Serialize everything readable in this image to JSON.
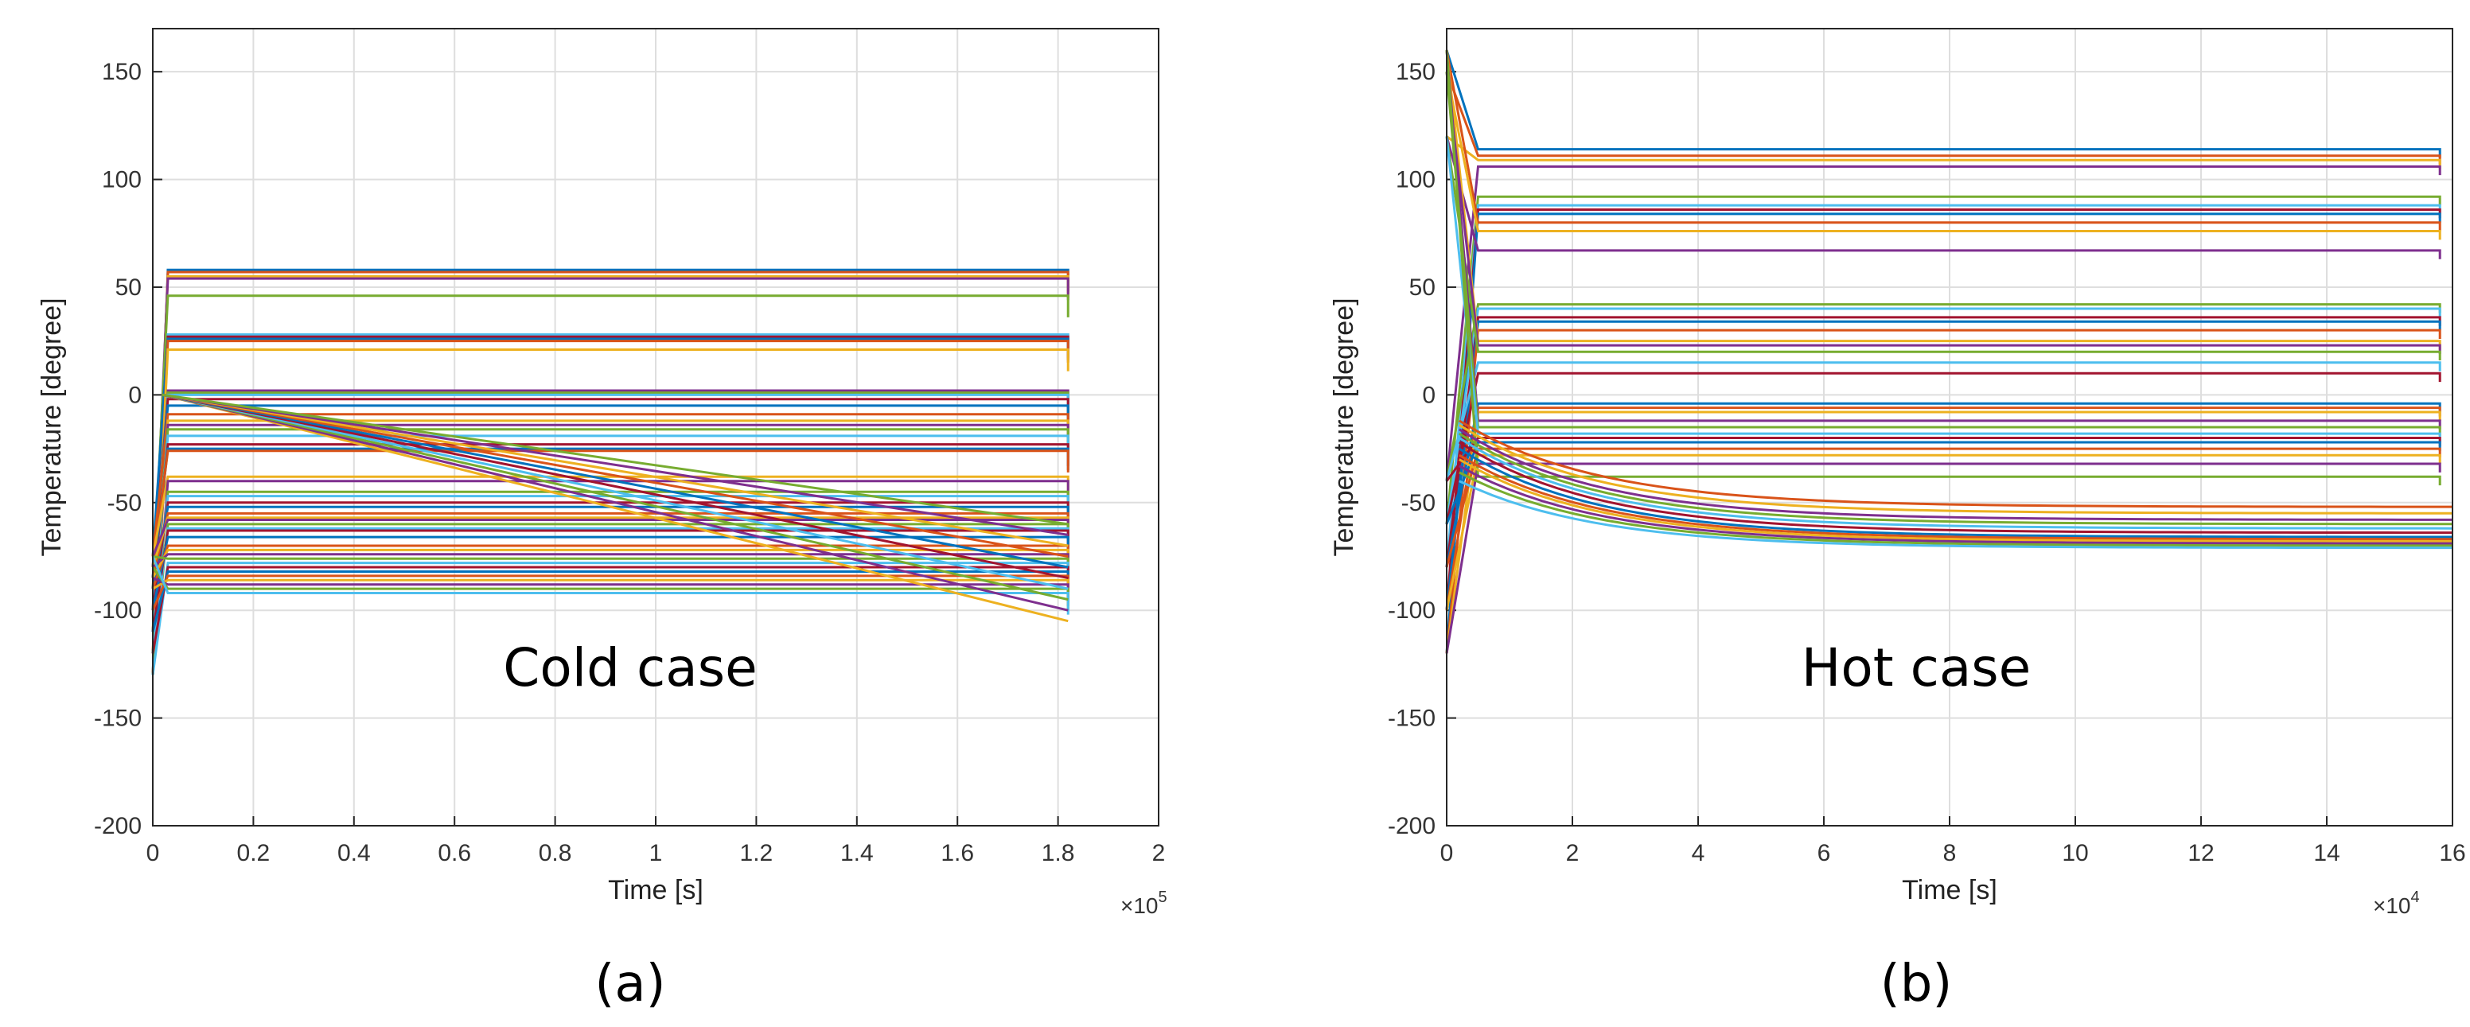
{
  "chart_data": [
    {
      "id": "a",
      "type": "line",
      "caption": "(a)",
      "annotation": "Cold case",
      "xlabel": "Time [s]",
      "ylabel": "Temperature [degree]",
      "x_multiplier": "×10",
      "x_multiplier_exp": "5",
      "xlim": [
        0,
        2
      ],
      "ylim": [
        -200,
        170
      ],
      "x_end": 1.82,
      "xticks": [
        "0",
        "0.2",
        "0.4",
        "0.6",
        "0.8",
        "1",
        "1.2",
        "1.4",
        "1.6",
        "1.8",
        "2"
      ],
      "yticks": [
        "150",
        "100",
        "50",
        "0",
        "-50",
        "-100",
        "-150",
        "-200"
      ],
      "grid": true,
      "series_summary": {
        "flat_levels_degree": [
          58,
          57,
          55,
          54,
          46,
          28,
          27,
          26,
          25,
          21,
          2,
          1,
          0,
          -2,
          -5,
          -9,
          -12,
          -14,
          -16,
          -19,
          -23,
          -25,
          -26,
          -38,
          -40,
          -45,
          -47,
          -50,
          -52,
          -55,
          -57,
          -58,
          -60,
          -62,
          -63,
          -66,
          -70,
          -72,
          -74,
          -76,
          -78,
          -80,
          -82,
          -84,
          -86,
          -88,
          -90,
          -92
        ],
        "start_values_degree": [
          -130,
          -120,
          -110,
          -100,
          -90,
          -85,
          -80,
          -75
        ],
        "ramp_series": [
          {
            "start": 0,
            "end": -105
          },
          {
            "start": 0,
            "end": -100
          },
          {
            "start": 0,
            "end": -95
          },
          {
            "start": 0,
            "end": -90
          },
          {
            "start": 0,
            "end": -85
          },
          {
            "start": 0,
            "end": -80
          },
          {
            "start": 0,
            "end": -75
          },
          {
            "start": 0,
            "end": -70
          },
          {
            "start": 0,
            "end": -65
          },
          {
            "start": 0,
            "end": -60
          }
        ]
      }
    },
    {
      "id": "b",
      "type": "line",
      "caption": "(b)",
      "annotation": "Hot case",
      "xlabel": "Time [s]",
      "ylabel": "Temperature [degree]",
      "x_multiplier": "×10",
      "x_multiplier_exp": "4",
      "xlim": [
        0,
        16
      ],
      "ylim": [
        -200,
        170
      ],
      "x_end": 15.8,
      "xticks": [
        "0",
        "2",
        "4",
        "6",
        "8",
        "10",
        "12",
        "14",
        "16"
      ],
      "yticks": [
        "150",
        "100",
        "50",
        "0",
        "-50",
        "-100",
        "-150",
        "-200"
      ],
      "grid": true,
      "series_summary": {
        "flat_levels_degree": [
          114,
          111,
          109,
          106,
          92,
          88,
          86,
          84,
          80,
          76,
          67,
          42,
          40,
          36,
          34,
          30,
          25,
          23,
          20,
          15,
          10,
          -4,
          -6,
          -8,
          -12,
          -15,
          -18,
          -20,
          -22,
          -25,
          -28,
          -32,
          -38
        ],
        "start_values_degree": [
          160,
          150,
          120,
          -40,
          -60,
          -80,
          -100,
          -120
        ],
        "decay_series": [
          {
            "start": -12,
            "end": -52
          },
          {
            "start": -14,
            "end": -55
          },
          {
            "start": -16,
            "end": -58
          },
          {
            "start": -18,
            "end": -60
          },
          {
            "start": -20,
            "end": -62
          },
          {
            "start": -22,
            "end": -64
          },
          {
            "start": -25,
            "end": -66
          },
          {
            "start": -28,
            "end": -67
          },
          {
            "start": -30,
            "end": -68
          },
          {
            "start": -33,
            "end": -69
          },
          {
            "start": -36,
            "end": -70
          },
          {
            "start": -40,
            "end": -71
          }
        ]
      }
    }
  ]
}
